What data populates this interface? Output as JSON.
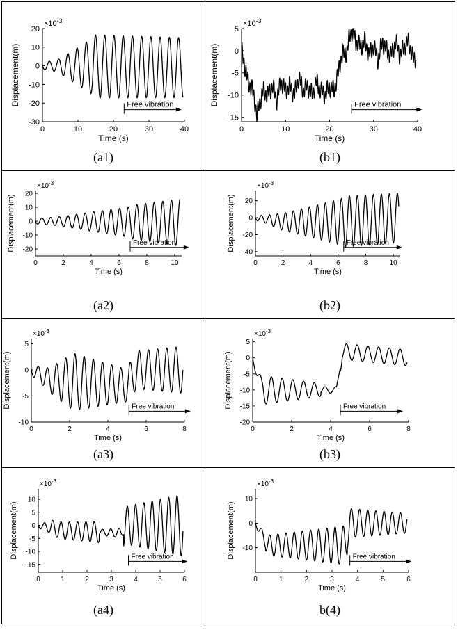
{
  "figure": {
    "panels": [
      {
        "caption": "(a1)",
        "exponent": "-3",
        "ylabel": "Displacement(m)",
        "xlabel": "Time (s)",
        "annotation": "Free vibration"
      },
      {
        "caption": "(b1)",
        "exponent": "-3",
        "ylabel": "Displacement(m)",
        "xlabel": "Time (s)",
        "annotation": "Free vibration"
      },
      {
        "caption": "(a2)",
        "exponent": "-3",
        "ylabel": "Displacement(m)",
        "xlabel": "Time (s)",
        "annotation": "Free vibration"
      },
      {
        "caption": "(b2)",
        "exponent": "-3",
        "ylabel": "Displacement(m)",
        "xlabel": "Time (s)",
        "annotation": "Free vibration"
      },
      {
        "caption": "(a3)",
        "exponent": "-3",
        "ylabel": "Displacement(m)",
        "xlabel": "Time (s)",
        "annotation": "Free vibration"
      },
      {
        "caption": "(b3)",
        "exponent": "-3",
        "ylabel": "Displacement(m)",
        "xlabel": "Time (s)",
        "annotation": "Free vibration"
      },
      {
        "caption": "(a4)",
        "exponent": "-3",
        "ylabel": "Displacement(m)",
        "xlabel": "Time (s)",
        "annotation": "Free vibration"
      },
      {
        "caption": "b(4)",
        "exponent": "-3",
        "ylabel": "Displacement(m)",
        "xlabel": "Time (s)",
        "annotation": "Free vibration"
      }
    ]
  },
  "chart_data": [
    {
      "id": "a1",
      "type": "line",
      "xlim": [
        0,
        40
      ],
      "ylim": [
        -30,
        20
      ],
      "xticks": [
        0,
        10,
        20,
        30,
        40
      ],
      "yticks": [
        -30,
        -20,
        -10,
        0,
        10,
        20
      ],
      "free_vibration_start": 23,
      "series": [
        {
          "period": 2.6,
          "segments": [
            {
              "t0": 0,
              "t1": 4,
              "a0": 2,
              "a1": 3
            },
            {
              "t0": 4,
              "t1": 14,
              "a0": 3,
              "a1": 15
            },
            {
              "t0": 14,
              "t1": 40,
              "a0": 17,
              "a1": 16
            }
          ],
          "offset": -1,
          "offset_ramp": [
            [
              0,
              0
            ],
            [
              40,
              -1
            ]
          ]
        }
      ]
    },
    {
      "id": "b1",
      "type": "line",
      "xlim": [
        0,
        40
      ],
      "ylim": [
        -16,
        5
      ],
      "xticks": [
        0,
        10,
        20,
        30,
        40
      ],
      "yticks": [
        -15,
        -10,
        -5,
        0,
        5
      ],
      "free_vibration_start": 25,
      "series": [
        {
          "points": [
            [
              0,
              0
            ],
            [
              0.5,
              -2
            ],
            [
              1,
              -5
            ],
            [
              1.5,
              -7
            ],
            [
              2,
              -8
            ],
            [
              2.5,
              -9
            ],
            [
              3,
              -11
            ],
            [
              3.5,
              -15
            ],
            [
              4,
              -12
            ],
            [
              5,
              -9
            ],
            [
              6,
              -10
            ],
            [
              7,
              -8
            ],
            [
              8,
              -11
            ],
            [
              9,
              -7
            ],
            [
              10,
              -9
            ],
            [
              11,
              -8
            ],
            [
              12,
              -10
            ],
            [
              13,
              -6
            ],
            [
              14,
              -9
            ],
            [
              15,
              -8
            ],
            [
              16,
              -10
            ],
            [
              17,
              -7
            ],
            [
              18,
              -9
            ],
            [
              19,
              -10
            ],
            [
              20,
              -8
            ],
            [
              21,
              -9
            ],
            [
              22,
              -5
            ],
            [
              22.5,
              -2
            ],
            [
              23,
              -1
            ],
            [
              24,
              0
            ],
            [
              24.5,
              3
            ],
            [
              25,
              4.5
            ],
            [
              26,
              2
            ],
            [
              27,
              1
            ],
            [
              28,
              2
            ],
            [
              29,
              -1
            ],
            [
              30,
              1
            ],
            [
              31,
              -2
            ],
            [
              32,
              2
            ],
            [
              33,
              0
            ],
            [
              34,
              -1
            ],
            [
              35,
              2
            ],
            [
              36,
              -1
            ],
            [
              37,
              1
            ],
            [
              38,
              2
            ],
            [
              39,
              -2
            ],
            [
              40,
              -1
            ]
          ],
          "jitter": 1.5,
          "jitter_period": 0.45
        }
      ]
    },
    {
      "id": "a2",
      "type": "line",
      "xlim": [
        0,
        10.5
      ],
      "ylim": [
        -25,
        22
      ],
      "xticks": [
        0,
        2,
        4,
        6,
        8,
        10
      ],
      "yticks": [
        -20,
        -10,
        0,
        10,
        20
      ],
      "free_vibration_start": 6.8,
      "series": [
        {
          "period": 0.62,
          "segments": [
            {
              "t0": 0,
              "t1": 1.5,
              "a0": 2,
              "a1": 3
            },
            {
              "t0": 1.5,
              "t1": 6.8,
              "a0": 3,
              "a1": 11
            },
            {
              "t0": 6.8,
              "t1": 10.5,
              "a0": 12,
              "a1": 17
            }
          ],
          "offset": -1,
          "offset_ramp": [
            [
              0,
              0
            ],
            [
              10.5,
              -1
            ]
          ]
        }
      ]
    },
    {
      "id": "b2",
      "type": "line",
      "xlim": [
        0,
        10.5
      ],
      "ylim": [
        -45,
        32
      ],
      "xticks": [
        0,
        2,
        4,
        6,
        8,
        10
      ],
      "yticks": [
        -40,
        -20,
        0,
        20
      ],
      "free_vibration_start": 6.4,
      "series": [
        {
          "period": 0.58,
          "segments": [
            {
              "t0": 0,
              "t1": 1,
              "a0": 3,
              "a1": 5
            },
            {
              "t0": 1,
              "t1": 6.4,
              "a0": 6,
              "a1": 28
            },
            {
              "t0": 6.4,
              "t1": 10.5,
              "a0": 30,
              "a1": 29
            }
          ],
          "offset": 0,
          "offset_ramp": [
            [
              0,
              0
            ],
            [
              2,
              -5
            ],
            [
              6,
              -5
            ],
            [
              10.5,
              0
            ]
          ]
        }
      ]
    },
    {
      "id": "a3",
      "type": "line",
      "xlim": [
        0,
        8
      ],
      "ylim": [
        -10,
        6
      ],
      "xticks": [
        0,
        2,
        4,
        6,
        8
      ],
      "yticks": [
        -10,
        -5,
        0,
        5
      ],
      "free_vibration_start": 5.1,
      "series": [
        {
          "period": 0.48,
          "segments": [
            {
              "t0": 0,
              "t1": 0.8,
              "a0": 1,
              "a1": 2
            },
            {
              "t0": 0.8,
              "t1": 2.2,
              "a0": 2,
              "a1": 5.5
            },
            {
              "t0": 2.2,
              "t1": 5.1,
              "a0": 5.5,
              "a1": 3
            },
            {
              "t0": 5.1,
              "t1": 8,
              "a0": 3.5,
              "a1": 4.5
            }
          ],
          "offset": -2,
          "offset_ramp": [
            [
              0,
              0
            ],
            [
              1,
              -2
            ],
            [
              5,
              -3
            ],
            [
              5.5,
              0
            ],
            [
              7.7,
              0
            ]
          ]
        }
      ]
    },
    {
      "id": "b3",
      "type": "line",
      "xlim": [
        0,
        8
      ],
      "ylim": [
        -20,
        6
      ],
      "xticks": [
        0,
        2,
        4,
        6,
        8
      ],
      "yticks": [
        -20,
        -15,
        -10,
        -5,
        0,
        5
      ],
      "free_vibration_start": 4.5,
      "series": [
        {
          "period": 0.55,
          "segments": [
            {
              "t0": 0,
              "t1": 0.5,
              "a0": 1,
              "a1": 3
            },
            {
              "t0": 0.5,
              "t1": 3.5,
              "a0": 4.5,
              "a1": 2
            },
            {
              "t0": 3.5,
              "t1": 4.5,
              "a0": 1,
              "a1": 1
            },
            {
              "t0": 4.5,
              "t1": 8,
              "a0": 2.5,
              "a1": 2.5
            }
          ],
          "offset": 0,
          "offset_ramp": [
            [
              0,
              0
            ],
            [
              0.5,
              -10
            ],
            [
              4.3,
              -10
            ],
            [
              4.6,
              2
            ],
            [
              8,
              0
            ]
          ]
        }
      ]
    },
    {
      "id": "a4",
      "type": "line",
      "xlim": [
        0,
        6
      ],
      "ylim": [
        -18,
        14
      ],
      "xticks": [
        0,
        1,
        2,
        3,
        4,
        5,
        6
      ],
      "yticks": [
        -15,
        -10,
        -5,
        0,
        5,
        10
      ],
      "free_vibration_start": 3.7,
      "series": [
        {
          "period": 0.34,
          "segments": [
            {
              "t0": 0,
              "t1": 0.5,
              "a0": 1,
              "a1": 2
            },
            {
              "t0": 0.5,
              "t1": 2.5,
              "a0": 3,
              "a1": 4
            },
            {
              "t0": 2.5,
              "t1": 3.5,
              "a0": 1,
              "a1": 2
            },
            {
              "t0": 3.5,
              "t1": 6,
              "a0": 7,
              "a1": 12
            }
          ],
          "offset": -2,
          "offset_ramp": [
            [
              0,
              0
            ],
            [
              1,
              -2
            ],
            [
              3.4,
              -3
            ],
            [
              3.6,
              0
            ],
            [
              6,
              0
            ]
          ]
        }
      ]
    },
    {
      "id": "b4",
      "type": "line",
      "xlim": [
        0,
        6
      ],
      "ylim": [
        -20,
        14
      ],
      "xticks": [
        0,
        1,
        2,
        3,
        4,
        5,
        6
      ],
      "yticks": [
        -10,
        0,
        10
      ],
      "free_vibration_start": 3.7,
      "series": [
        {
          "period": 0.32,
          "segments": [
            {
              "t0": 0,
              "t1": 0.4,
              "a0": 1,
              "a1": 3
            },
            {
              "t0": 0.4,
              "t1": 3.6,
              "a0": 4,
              "a1": 8
            },
            {
              "t0": 3.6,
              "t1": 6,
              "a0": 6,
              "a1": 4
            }
          ],
          "offset": -9,
          "offset_ramp": [
            [
              0,
              0
            ],
            [
              0.5,
              -9
            ],
            [
              3.5,
              -9
            ],
            [
              3.7,
              0
            ],
            [
              6,
              0
            ]
          ]
        }
      ]
    }
  ]
}
